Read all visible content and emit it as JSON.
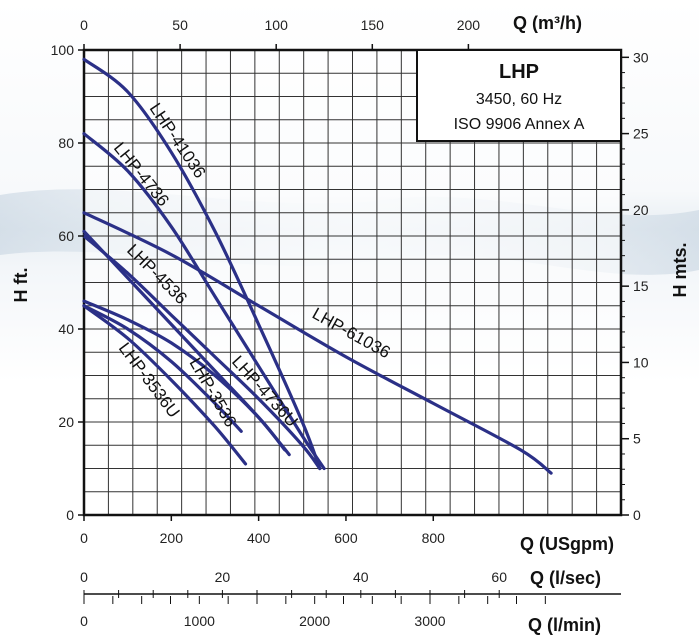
{
  "chart_data": {
    "type": "line",
    "legend_box": {
      "title": "LHP",
      "line1": "3450, 60 Hz",
      "line2": "ISO 9906 Annex A"
    },
    "axes": {
      "x_bottom": {
        "title": "Q (USgpm)",
        "range": [
          0,
          1230
        ],
        "ticks": [
          0,
          200,
          400,
          600,
          800
        ]
      },
      "x_top": {
        "title": "Q (m³/h)",
        "range": [
          0,
          279.4
        ],
        "ticks": [
          0,
          50,
          100,
          150,
          200
        ]
      },
      "x_lsec": {
        "title": "Q (l/sec)",
        "range": [
          0,
          77.6
        ],
        "ticks": [
          0,
          20,
          40,
          60
        ]
      },
      "x_lmin": {
        "title": "Q (l/min)",
        "range": [
          0,
          4656
        ],
        "ticks": [
          0,
          1000,
          2000,
          3000
        ]
      },
      "y_left": {
        "title": "H ft.",
        "range": [
          0,
          100
        ],
        "ticks": [
          0,
          20,
          40,
          60,
          80,
          100
        ]
      },
      "y_right": {
        "title": "H mts.",
        "range": [
          0,
          30.48
        ],
        "ticks": [
          0,
          5,
          10,
          15,
          20,
          25,
          30
        ]
      }
    },
    "grid": true,
    "series": [
      {
        "name": "LHP-41036",
        "x": [
          0,
          100,
          200,
          300,
          400,
          500,
          540
        ],
        "y": [
          98,
          91,
          78,
          61,
          41,
          20,
          10
        ]
      },
      {
        "name": "LHP-4736",
        "x": [
          0,
          100,
          200,
          300,
          400,
          500,
          550
        ],
        "y": [
          82,
          74,
          62,
          47,
          32,
          17,
          10
        ]
      },
      {
        "name": "LHP-61036",
        "x": [
          0,
          200,
          400,
          600,
          800,
          1000,
          1070
        ],
        "y": [
          65,
          56,
          45,
          34,
          24,
          14,
          9
        ]
      },
      {
        "name": "LHP-4536",
        "x": [
          0,
          100,
          200,
          300,
          400,
          470
        ],
        "y": [
          61,
          51,
          41,
          31,
          21,
          13
        ]
      },
      {
        "name": "LHP-4736U",
        "x": [
          0,
          100,
          200,
          300,
          400,
          500,
          540
        ],
        "y": [
          60,
          52,
          43,
          34,
          25,
          15,
          10
        ]
      },
      {
        "name": "LHP-3536",
        "x": [
          0,
          100,
          200,
          300,
          360
        ],
        "y": [
          45,
          40,
          33,
          24,
          18
        ]
      },
      {
        "name": "LHP-3536U",
        "x": [
          0,
          100,
          200,
          300,
          370
        ],
        "y": [
          45,
          38,
          29,
          19,
          11
        ]
      },
      {
        "name": "",
        "x": [
          0,
          100,
          200,
          300,
          400,
          460
        ],
        "y": [
          46,
          42,
          37,
          30,
          21,
          14
        ]
      }
    ],
    "curve_labels": [
      "LHP-41036",
      "LHP-4736",
      "LHP-4536",
      "LHP-61036",
      "LHP-3536",
      "LHP-4736U",
      "LHP-3536U"
    ],
    "line_color": "#2b3087"
  }
}
